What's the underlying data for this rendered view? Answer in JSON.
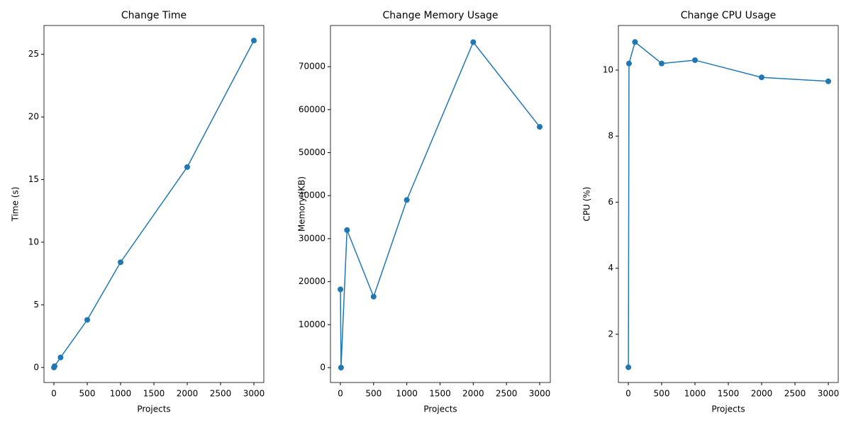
{
  "chart_data": [
    {
      "type": "line",
      "title": "Change Time",
      "x_label": "Projects",
      "y_label": "Time (s)",
      "color": "#1f77b4",
      "markers": true,
      "x": [
        1,
        10,
        100,
        500,
        1000,
        2000,
        3000
      ],
      "values": [
        0.0,
        0.1,
        0.8,
        3.8,
        8.4,
        16.0,
        26.1
      ],
      "xlim": [
        -149,
        3149
      ],
      "ylim": [
        -1.2,
        27.3
      ],
      "xticks": [
        0,
        500,
        1000,
        1500,
        2000,
        2500,
        3000
      ],
      "yticks": [
        0,
        5,
        10,
        15,
        20,
        25
      ]
    },
    {
      "type": "line",
      "title": "Change Memory Usage",
      "x_label": "Projects",
      "y_label": "Memory (KB)",
      "color": "#1f77b4",
      "markers": true,
      "x": [
        1,
        10,
        100,
        500,
        1000,
        2000,
        3000
      ],
      "values": [
        18200,
        0,
        32000,
        16500,
        39000,
        75700,
        56000
      ],
      "xlim": [
        -149,
        3160
      ],
      "ylim": [
        -3460,
        79570
      ],
      "xticks": [
        0,
        500,
        1000,
        1500,
        2000,
        2500,
        3000
      ],
      "yticks": [
        0,
        10000,
        20000,
        30000,
        40000,
        50000,
        60000,
        70000
      ]
    },
    {
      "type": "line",
      "title": "Change CPU Usage",
      "x_label": "Projects",
      "y_label": "CPU (%)",
      "color": "#1f77b4",
      "markers": true,
      "x": [
        1,
        10,
        100,
        500,
        1000,
        2000,
        3000
      ],
      "values": [
        1.0,
        10.2,
        10.85,
        10.2,
        10.3,
        9.78,
        9.66
      ],
      "xlim": [
        -149,
        3149
      ],
      "ylim": [
        0.54,
        11.35
      ],
      "xticks": [
        0,
        500,
        1000,
        1500,
        2000,
        2500,
        3000
      ],
      "yticks": [
        2,
        4,
        6,
        8,
        10
      ]
    }
  ]
}
